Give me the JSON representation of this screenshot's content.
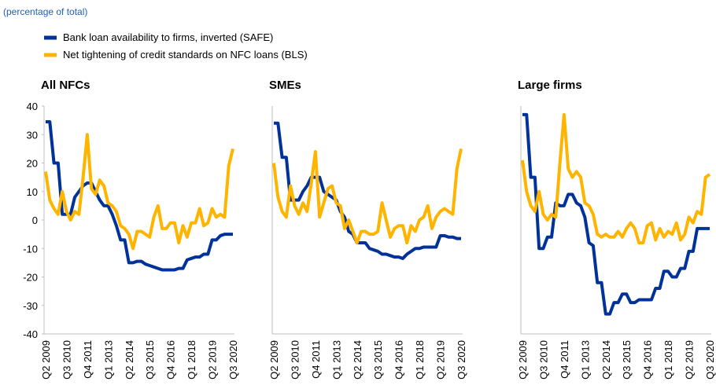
{
  "subtitle": "(percentage of total)",
  "chart_data": [
    {
      "type": "line",
      "title": "All NFCs",
      "categories": [
        "Q2 2009",
        null,
        null,
        null,
        null,
        "Q3 2010",
        null,
        null,
        null,
        null,
        "Q4 2011",
        null,
        null,
        null,
        null,
        "Q1 2013",
        null,
        null,
        null,
        null,
        "Q2 2014",
        null,
        null,
        null,
        null,
        "Q3 2015",
        null,
        null,
        null,
        null,
        "Q4 2016",
        null,
        null,
        null,
        null,
        "Q1 2018",
        null,
        null,
        null,
        null,
        "Q2 2019",
        null,
        null,
        null,
        null,
        "Q3 2020"
      ],
      "ylim": [
        -40,
        40
      ],
      "yticks": [
        -40,
        -30,
        -20,
        -10,
        0,
        10,
        20,
        30,
        40
      ],
      "series": [
        {
          "name": "Bank loan availability to firms, inverted (SAFE)",
          "color": "#003299",
          "values": [
            34.5,
            34.5,
            20,
            20,
            2,
            2,
            2,
            8,
            10,
            12,
            13,
            13,
            10,
            7,
            5,
            5,
            2,
            -2,
            -7,
            -7,
            -15,
            -15,
            -14.5,
            -14.5,
            -15.5,
            -16,
            -16.5,
            -17,
            -17.5,
            -17.5,
            -17.5,
            -17.5,
            -17,
            -17,
            -14,
            -13.5,
            -13,
            -13,
            -12,
            -12,
            -7,
            -7,
            -5.5,
            -5,
            -5,
            -5
          ]
        },
        {
          "name": "Net tightening of credit standards on NFC loans (BLS)",
          "color": "#ffb400",
          "values": [
            17,
            7,
            4,
            2,
            10,
            3,
            0,
            3,
            2,
            15,
            30,
            11,
            9,
            14,
            12,
            6,
            5,
            3,
            -2,
            -3,
            -5,
            -10,
            -4,
            -4,
            -5,
            -6,
            1,
            5,
            -3,
            -3,
            -1,
            -1,
            -8,
            -2,
            -6,
            -1,
            -1,
            4,
            -2,
            -1,
            4,
            1,
            2,
            1,
            19,
            25
          ]
        }
      ]
    },
    {
      "type": "line",
      "title": "SMEs",
      "categories": [
        "Q2 2009",
        null,
        null,
        null,
        null,
        "Q3 2010",
        null,
        null,
        null,
        null,
        "Q4 2011",
        null,
        null,
        null,
        null,
        "Q1 2013",
        null,
        null,
        null,
        null,
        "Q2 2014",
        null,
        null,
        null,
        null,
        "Q3 2015",
        null,
        null,
        null,
        null,
        "Q4 2016",
        null,
        null,
        null,
        null,
        "Q1 2018",
        null,
        null,
        null,
        null,
        "Q2 2019",
        null,
        null,
        null,
        null,
        "Q3 2020"
      ],
      "ylim": [
        -40,
        40
      ],
      "series": [
        {
          "color": "#003299",
          "values": [
            34,
            34,
            22,
            22,
            7,
            7,
            7,
            10,
            12,
            15,
            15,
            15,
            10,
            9,
            8,
            7,
            3,
            1,
            -4,
            -5,
            -8,
            -8,
            -8,
            -10,
            -10.5,
            -11,
            -12,
            -12,
            -12.5,
            -13,
            -13,
            -13.5,
            -12,
            -11,
            -10,
            -10,
            -9.5,
            -9.5,
            -9.5,
            -9.5,
            -5.5,
            -5.5,
            -6,
            -6,
            -6.5,
            -6.5
          ]
        },
        {
          "color": "#ffb400",
          "values": [
            20,
            8,
            3,
            1,
            12,
            5,
            2,
            6,
            3,
            13,
            24,
            1,
            6,
            11,
            12,
            6,
            5,
            -3,
            0,
            -4,
            -8,
            -4,
            -4,
            -5,
            -5,
            -4,
            6,
            0,
            -6,
            -3,
            -2,
            -2,
            -8,
            -2,
            -4,
            0,
            1,
            5,
            -3,
            1,
            3,
            4,
            3,
            2,
            18,
            25
          ]
        }
      ]
    },
    {
      "type": "line",
      "title": "Large firms",
      "categories": [
        "Q2 2009",
        null,
        null,
        null,
        null,
        "Q3 2010",
        null,
        null,
        null,
        null,
        "Q4 2011",
        null,
        null,
        null,
        null,
        "Q1 2013",
        null,
        null,
        null,
        null,
        "Q2 2014",
        null,
        null,
        null,
        null,
        "Q3 2015",
        null,
        null,
        null,
        null,
        "Q4 2016",
        null,
        null,
        null,
        null,
        "Q1 2018",
        null,
        null,
        null,
        null,
        "Q2 2019",
        null,
        null,
        null,
        null,
        "Q3 2020"
      ],
      "ylim": [
        -40,
        40
      ],
      "series": [
        {
          "color": "#003299",
          "values": [
            37,
            37,
            15,
            15,
            -10,
            -10,
            -6,
            -6,
            6,
            5,
            5,
            9,
            9,
            6,
            5,
            1,
            -8,
            -9,
            -22,
            -22,
            -33,
            -33,
            -29,
            -29,
            -26,
            -26,
            -29,
            -29,
            -28,
            -28,
            -28,
            -28,
            -24,
            -24,
            -18,
            -18,
            -20,
            -20,
            -17,
            -17,
            -11,
            -11,
            -3,
            -3,
            -3,
            -3
          ]
        },
        {
          "color": "#ffb400",
          "values": [
            21,
            10,
            5,
            3,
            10,
            2,
            0,
            2,
            1,
            20,
            37,
            18,
            15,
            17,
            15,
            6,
            5,
            2,
            -5,
            -6,
            -5,
            -6,
            -6,
            -4,
            -6,
            -3,
            -1,
            -3,
            -8,
            -8,
            -2,
            -1,
            -7,
            -3,
            -6,
            -4,
            -5,
            -1,
            -7,
            -5,
            1,
            -1,
            3,
            2,
            15,
            16
          ]
        }
      ]
    }
  ]
}
